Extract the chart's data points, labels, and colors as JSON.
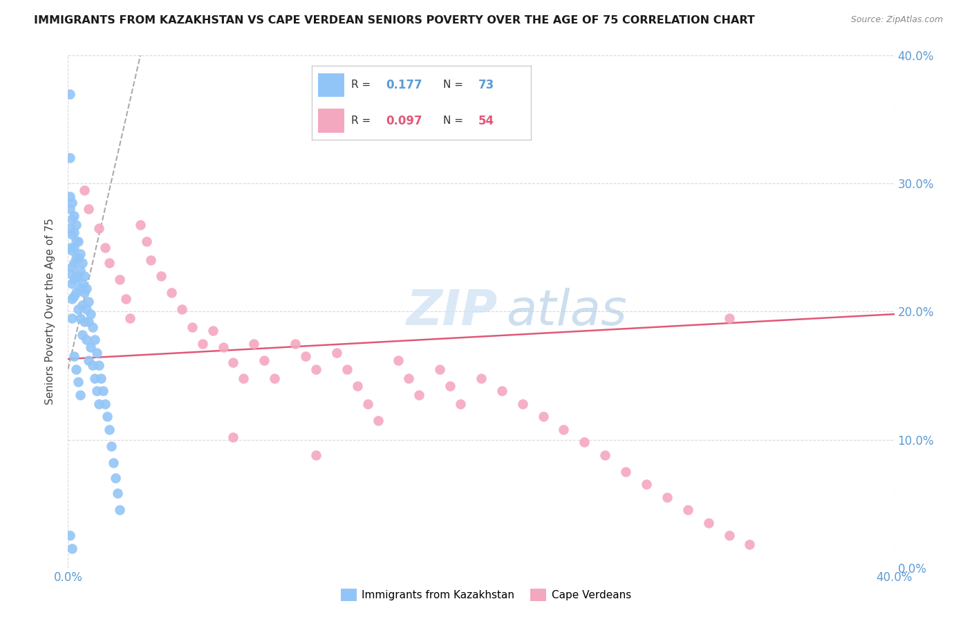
{
  "title": "IMMIGRANTS FROM KAZAKHSTAN VS CAPE VERDEAN SENIORS POVERTY OVER THE AGE OF 75 CORRELATION CHART",
  "source": "Source: ZipAtlas.com",
  "ylabel": "Seniors Poverty Over the Age of 75",
  "color_blue": "#92c5f7",
  "color_pink": "#f4a8c0",
  "color_axis": "#5b9bd5",
  "color_grid": "#d9d9d9",
  "color_trendline_blue": "#aaaaaa",
  "color_trendline_pink": "#e05878",
  "watermark_zip_color": "#cce0f5",
  "watermark_atlas_color": "#b8d0e8",
  "blue_x": [
    0.001,
    0.001,
    0.001,
    0.001,
    0.001,
    0.001,
    0.001,
    0.002,
    0.002,
    0.002,
    0.002,
    0.002,
    0.002,
    0.002,
    0.002,
    0.003,
    0.003,
    0.003,
    0.003,
    0.003,
    0.003,
    0.004,
    0.004,
    0.004,
    0.004,
    0.004,
    0.005,
    0.005,
    0.005,
    0.005,
    0.006,
    0.006,
    0.006,
    0.006,
    0.007,
    0.007,
    0.007,
    0.007,
    0.008,
    0.008,
    0.008,
    0.009,
    0.009,
    0.009,
    0.01,
    0.01,
    0.01,
    0.011,
    0.011,
    0.012,
    0.012,
    0.013,
    0.013,
    0.014,
    0.014,
    0.015,
    0.015,
    0.016,
    0.017,
    0.018,
    0.019,
    0.02,
    0.021,
    0.022,
    0.023,
    0.024,
    0.025,
    0.003,
    0.004,
    0.005,
    0.006,
    0.001,
    0.002
  ],
  "blue_y": [
    0.37,
    0.32,
    0.29,
    0.28,
    0.265,
    0.25,
    0.23,
    0.285,
    0.272,
    0.26,
    0.248,
    0.235,
    0.222,
    0.21,
    0.195,
    0.275,
    0.262,
    0.25,
    0.238,
    0.225,
    0.212,
    0.268,
    0.255,
    0.242,
    0.228,
    0.215,
    0.255,
    0.242,
    0.228,
    0.202,
    0.245,
    0.232,
    0.218,
    0.195,
    0.238,
    0.222,
    0.205,
    0.182,
    0.228,
    0.215,
    0.192,
    0.218,
    0.202,
    0.178,
    0.208,
    0.192,
    0.162,
    0.198,
    0.172,
    0.188,
    0.158,
    0.178,
    0.148,
    0.168,
    0.138,
    0.158,
    0.128,
    0.148,
    0.138,
    0.128,
    0.118,
    0.108,
    0.095,
    0.082,
    0.07,
    0.058,
    0.045,
    0.165,
    0.155,
    0.145,
    0.135,
    0.025,
    0.015
  ],
  "pink_x": [
    0.008,
    0.01,
    0.015,
    0.018,
    0.02,
    0.025,
    0.028,
    0.03,
    0.035,
    0.038,
    0.04,
    0.045,
    0.05,
    0.055,
    0.06,
    0.065,
    0.07,
    0.075,
    0.08,
    0.085,
    0.09,
    0.095,
    0.1,
    0.11,
    0.115,
    0.12,
    0.13,
    0.135,
    0.14,
    0.145,
    0.15,
    0.16,
    0.165,
    0.17,
    0.18,
    0.185,
    0.19,
    0.2,
    0.21,
    0.22,
    0.23,
    0.24,
    0.25,
    0.26,
    0.27,
    0.28,
    0.29,
    0.3,
    0.31,
    0.32,
    0.33,
    0.32,
    0.12,
    0.08
  ],
  "pink_y": [
    0.295,
    0.28,
    0.265,
    0.25,
    0.238,
    0.225,
    0.21,
    0.195,
    0.268,
    0.255,
    0.24,
    0.228,
    0.215,
    0.202,
    0.188,
    0.175,
    0.185,
    0.172,
    0.16,
    0.148,
    0.175,
    0.162,
    0.148,
    0.175,
    0.165,
    0.155,
    0.168,
    0.155,
    0.142,
    0.128,
    0.115,
    0.162,
    0.148,
    0.135,
    0.155,
    0.142,
    0.128,
    0.148,
    0.138,
    0.128,
    0.118,
    0.108,
    0.098,
    0.088,
    0.075,
    0.065,
    0.055,
    0.045,
    0.035,
    0.025,
    0.018,
    0.195,
    0.088,
    0.102
  ],
  "blue_trend_x": [
    0.0,
    0.035
  ],
  "blue_trend_y": [
    0.155,
    0.4
  ],
  "pink_trend_x": [
    0.0,
    0.4
  ],
  "pink_trend_y": [
    0.163,
    0.198
  ],
  "xlim": [
    0,
    0.4
  ],
  "ylim": [
    0,
    0.4
  ],
  "yticks": [
    0.0,
    0.1,
    0.2,
    0.3,
    0.4
  ],
  "ytick_labels_right": [
    "0.0%",
    "10.0%",
    "20.0%",
    "30.0%",
    "40.0%"
  ],
  "xtick_left_label": "0.0%",
  "xtick_right_label": "40.0%",
  "legend1_label": "Immigrants from Kazakhstan",
  "legend2_label": "Cape Verdeans"
}
